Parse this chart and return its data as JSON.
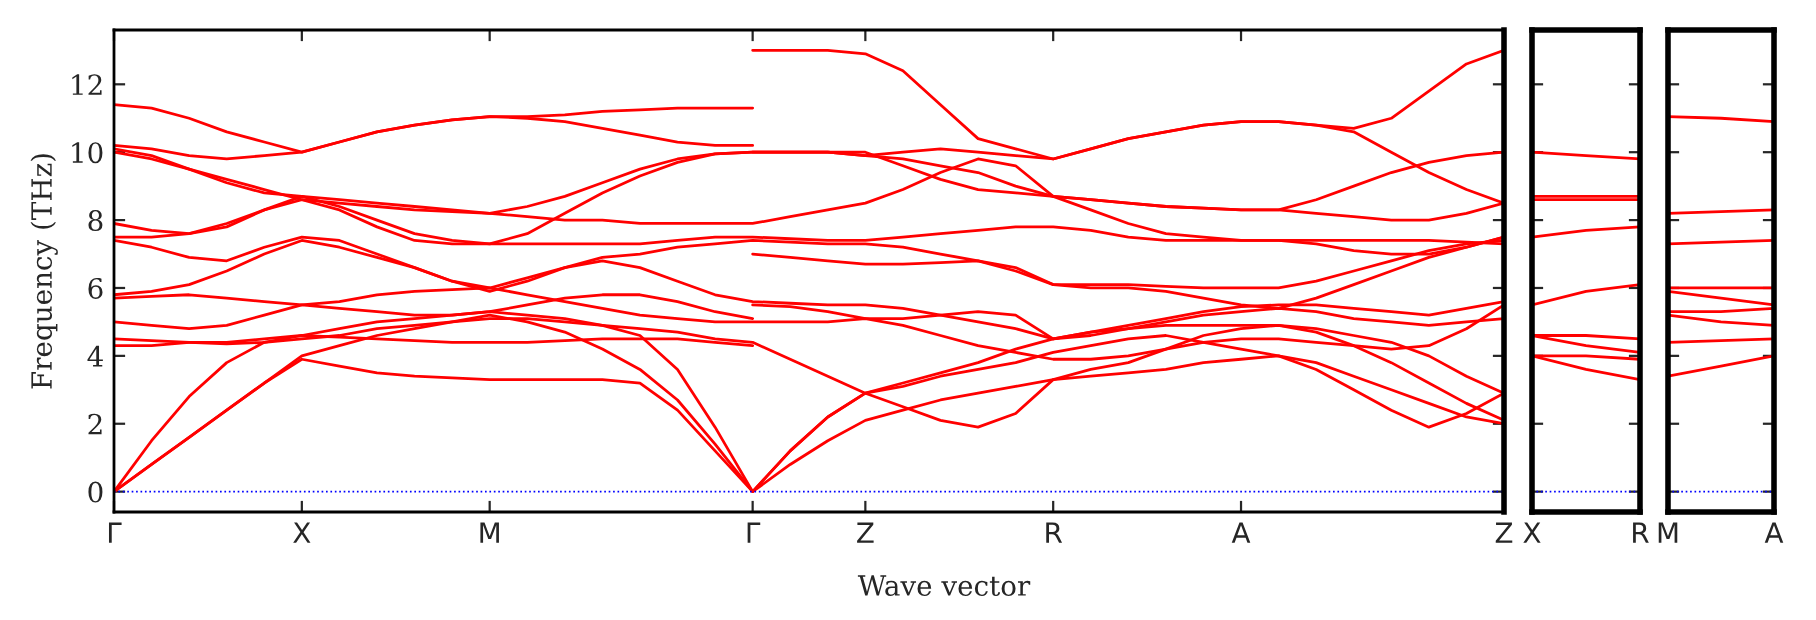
{
  "chart_data": [
    {
      "type": "line",
      "ylabel": "Frequency (THz)",
      "xlabel": "Wave vector",
      "ylim": [
        -0.6,
        13.6
      ],
      "yticks": [
        0,
        2,
        4,
        6,
        8,
        10,
        12
      ],
      "categories": [
        "Γ",
        null,
        null,
        null,
        null,
        "X",
        null,
        null,
        null,
        null,
        "M",
        null,
        null,
        null,
        null,
        null,
        null,
        "Γ",
        null,
        null,
        "Z",
        null,
        null,
        null,
        null,
        "R",
        null,
        null,
        null,
        null,
        "A",
        null,
        null,
        null,
        null,
        null,
        null,
        "Z"
      ],
      "marker": "none",
      "line_style": "solid",
      "ref_lines": [
        {
          "axis": "y",
          "value": 0,
          "color": "#0000ff",
          "line_style": "dotted"
        }
      ],
      "series": [
        {
          "color": "#ff0000",
          "values": [
            0,
            0.8,
            1.6,
            2.4,
            3.2,
            3.9,
            3.7,
            3.5,
            3.4,
            3.35,
            3.3,
            3.3,
            3.3,
            3.3,
            3.2,
            2.4,
            1.2,
            0,
            0.8,
            1.5,
            2.1,
            2.4,
            2.7,
            2.9,
            3.1,
            3.3,
            3.4,
            3.5,
            3.6,
            3.8,
            3.9,
            4.0,
            3.8,
            3.4,
            3.0,
            2.6,
            2.2,
            2.0
          ]
        },
        {
          "color": "#ff0000",
          "values": [
            0,
            0.8,
            1.6,
            2.4,
            3.2,
            4.0,
            4.3,
            4.6,
            4.8,
            5.0,
            5.2,
            5.0,
            4.7,
            4.2,
            3.6,
            2.7,
            1.4,
            0,
            1.2,
            2.2,
            2.9,
            2.5,
            2.1,
            1.9,
            2.3,
            3.3,
            3.6,
            3.8,
            4.2,
            4.6,
            4.8,
            4.9,
            4.7,
            4.3,
            3.8,
            3.2,
            2.6,
            2.1
          ]
        },
        {
          "color": "#ff0000",
          "values": [
            0,
            1.5,
            2.8,
            3.8,
            4.4,
            4.6,
            4.8,
            5.0,
            5.1,
            5.2,
            5.3,
            5.2,
            5.1,
            4.9,
            4.6,
            3.6,
            1.9,
            0,
            1.2,
            2.2,
            2.9,
            3.1,
            3.4,
            3.6,
            3.8,
            4.1,
            4.3,
            4.5,
            4.6,
            4.4,
            4.2,
            4.0,
            3.6,
            3.0,
            2.4,
            1.9,
            2.3,
            2.9
          ]
        },
        {
          "color": "#ff0000",
          "values": [
            4.5,
            4.45,
            4.4,
            4.35,
            4.4,
            4.5,
            4.6,
            4.8,
            4.9,
            5.0,
            5.1,
            5.1,
            5.0,
            4.9,
            4.8,
            4.7,
            4.5,
            4.4,
            3.9,
            3.4,
            2.9,
            3.2,
            3.5,
            3.8,
            4.2,
            4.5,
            4.7,
            4.8,
            4.9,
            4.9,
            4.9,
            4.9,
            4.8,
            4.6,
            4.4,
            4.0,
            3.4,
            2.9
          ]
        },
        {
          "color": "#ff0000",
          "values": [
            5.0,
            4.9,
            4.8,
            4.9,
            5.2,
            5.5,
            5.6,
            5.8,
            5.9,
            5.95,
            6.0,
            5.8,
            5.6,
            5.4,
            5.2,
            5.1,
            5.0,
            5.0,
            5.0,
            5.0,
            5.1,
            4.9,
            4.6,
            4.3,
            4.1,
            3.9,
            3.9,
            4.0,
            4.2,
            4.4,
            4.5,
            4.5,
            4.4,
            4.3,
            4.2,
            4.3,
            4.8,
            5.5
          ]
        },
        {
          "color": "#ff0000",
          "values": [
            5.8,
            5.9,
            6.1,
            6.5,
            7.0,
            7.4,
            7.2,
            6.9,
            6.6,
            6.2,
            6.0,
            6.3,
            6.6,
            6.8,
            6.6,
            6.2,
            5.8,
            5.6,
            5.55,
            5.5,
            5.5,
            5.4,
            5.2,
            5.0,
            4.8,
            4.5,
            4.7,
            4.9,
            5.1,
            5.3,
            5.45,
            5.5,
            5.5,
            5.4,
            5.3,
            5.2,
            5.4,
            5.6
          ]
        },
        {
          "color": "#ff0000",
          "values": [
            7.4,
            7.2,
            6.9,
            6.8,
            7.2,
            7.5,
            7.4,
            7.0,
            6.6,
            6.2,
            5.9,
            6.2,
            6.6,
            6.9,
            7.0,
            7.2,
            7.3,
            7.4,
            7.35,
            7.3,
            7.3,
            7.2,
            7.0,
            6.8,
            6.6,
            6.1,
            6.0,
            6.0,
            5.9,
            5.7,
            5.5,
            5.4,
            5.7,
            6.1,
            6.5,
            6.9,
            7.2,
            7.5
          ]
        },
        {
          "color": "#ff0000",
          "values": [
            7.5,
            7.5,
            7.6,
            7.8,
            8.3,
            8.6,
            8.3,
            7.8,
            7.4,
            7.3,
            7.3,
            7.3,
            7.3,
            7.3,
            7.3,
            7.4,
            7.5,
            7.5,
            7.45,
            7.4,
            7.4,
            7.5,
            7.6,
            7.7,
            7.8,
            7.8,
            7.7,
            7.5,
            7.4,
            7.4,
            7.4,
            7.4,
            7.4,
            7.4,
            7.4,
            7.4,
            7.35,
            7.3
          ]
        },
        {
          "color": "#ff0000",
          "values": [
            7.9,
            7.7,
            7.6,
            7.9,
            8.3,
            8.7,
            8.6,
            8.5,
            8.4,
            8.3,
            8.2,
            8.1,
            8.0,
            8.0,
            7.9,
            7.9,
            7.9,
            7.9,
            8.1,
            8.3,
            8.5,
            8.9,
            9.4,
            9.8,
            9.6,
            8.7,
            8.6,
            8.5,
            8.4,
            8.35,
            8.3,
            8.3,
            8.2,
            8.1,
            8.0,
            8.0,
            8.2,
            8.5
          ]
        },
        {
          "color": "#ff0000",
          "values": [
            10.0,
            9.8,
            9.5,
            9.2,
            8.9,
            8.6,
            8.5,
            8.4,
            8.3,
            8.25,
            8.2,
            8.4,
            8.7,
            9.1,
            9.5,
            9.8,
            9.95,
            10.0,
            10.0,
            10.0,
            10.0,
            9.6,
            9.2,
            8.9,
            8.8,
            8.7,
            8.6,
            8.5,
            8.4,
            8.35,
            8.3,
            8.3,
            8.6,
            9.0,
            9.4,
            9.7,
            9.9,
            10.0
          ]
        },
        {
          "color": "#ff0000",
          "values": [
            10.1,
            9.9,
            9.5,
            9.1,
            8.8,
            8.7,
            8.4,
            8.0,
            7.6,
            7.4,
            7.3,
            7.6,
            8.2,
            8.8,
            9.3,
            9.7,
            9.95,
            10.0,
            10.0,
            10.0,
            9.9,
            9.8,
            9.6,
            9.4,
            9.0,
            8.7,
            8.3,
            7.9,
            7.6,
            7.5,
            7.4,
            7.4,
            7.3,
            7.1,
            7.0,
            7.0,
            7.2,
            7.5
          ]
        },
        {
          "color": "#ff0000",
          "values": [
            4.3,
            4.3,
            4.4,
            4.4,
            4.5,
            4.6,
            4.55,
            4.5,
            4.45,
            4.4,
            4.4,
            4.4,
            4.45,
            4.5,
            4.5,
            4.5,
            4.4,
            4.3,
            null,
            null,
            null,
            null,
            null,
            null,
            null,
            null,
            null,
            null,
            null,
            null,
            null,
            null,
            null,
            null,
            null,
            null,
            null,
            null
          ]
        },
        {
          "color": "#ff0000",
          "values": [
            5.7,
            5.75,
            5.8,
            5.7,
            5.6,
            5.5,
            5.4,
            5.3,
            5.2,
            5.2,
            5.3,
            5.5,
            5.7,
            5.8,
            5.8,
            5.6,
            5.3,
            5.1,
            null,
            null,
            null,
            null,
            null,
            null,
            null,
            null,
            null,
            null,
            null,
            null,
            null,
            null,
            null,
            null,
            null,
            null,
            null,
            null
          ]
        },
        {
          "color": "#ff0000",
          "values": [
            10.2,
            10.1,
            9.9,
            9.8,
            9.9,
            10.0,
            10.3,
            10.6,
            10.8,
            10.95,
            11.05,
            11.0,
            10.9,
            10.7,
            10.5,
            10.3,
            10.2,
            10.2,
            null,
            null,
            null,
            null,
            null,
            null,
            null,
            null,
            null,
            null,
            null,
            null,
            null,
            null,
            null,
            null,
            null,
            null,
            null,
            null
          ]
        },
        {
          "color": "#ff0000",
          "values": [
            11.4,
            11.3,
            11.0,
            10.6,
            10.3,
            10.0,
            10.3,
            10.6,
            10.8,
            10.95,
            11.05,
            11.05,
            11.1,
            11.2,
            11.25,
            11.3,
            11.3,
            11.3,
            null,
            null,
            null,
            null,
            null,
            null,
            null,
            null,
            null,
            null,
            null,
            null,
            null,
            null,
            null,
            null,
            null,
            null,
            null,
            null
          ]
        },
        {
          "color": "#ff0000",
          "values": [
            null,
            null,
            null,
            null,
            null,
            null,
            null,
            null,
            null,
            null,
            null,
            null,
            null,
            null,
            null,
            null,
            null,
            5.5,
            5.45,
            5.3,
            5.1,
            5.1,
            5.2,
            5.3,
            5.2,
            4.5,
            4.6,
            4.8,
            5.0,
            5.2,
            5.3,
            5.4,
            5.3,
            5.1,
            5.0,
            4.9,
            5.0,
            5.1
          ]
        },
        {
          "color": "#ff0000",
          "values": [
            null,
            null,
            null,
            null,
            null,
            null,
            null,
            null,
            null,
            null,
            null,
            null,
            null,
            null,
            null,
            null,
            null,
            7.0,
            6.9,
            6.8,
            6.7,
            6.7,
            6.75,
            6.8,
            6.5,
            6.1,
            6.1,
            6.1,
            6.05,
            6.0,
            6.0,
            6.0,
            6.2,
            6.5,
            6.8,
            7.1,
            7.3,
            7.4
          ]
        },
        {
          "color": "#ff0000",
          "values": [
            null,
            null,
            null,
            null,
            null,
            null,
            null,
            null,
            null,
            null,
            null,
            null,
            null,
            null,
            null,
            null,
            null,
            10.0,
            10.0,
            10.0,
            9.9,
            10.0,
            10.1,
            10.0,
            9.9,
            9.8,
            10.1,
            10.4,
            10.6,
            10.8,
            10.9,
            10.9,
            10.8,
            10.6,
            10.0,
            9.4,
            8.9,
            8.5
          ]
        },
        {
          "color": "#ff0000",
          "values": [
            null,
            null,
            null,
            null,
            null,
            null,
            null,
            null,
            null,
            null,
            null,
            null,
            null,
            null,
            null,
            null,
            null,
            13.0,
            13.0,
            13.0,
            12.9,
            12.4,
            11.4,
            10.4,
            10.1,
            9.8,
            10.1,
            10.4,
            10.6,
            10.8,
            10.9,
            10.9,
            10.8,
            10.7,
            11.0,
            11.8,
            12.6,
            13.0
          ]
        }
      ]
    },
    {
      "type": "line",
      "ylim": [
        -0.6,
        13.6
      ],
      "yticks": [
        0,
        2,
        4,
        6,
        8,
        10,
        12
      ],
      "tick_labels": "x",
      "categories": [
        "X",
        null,
        "R"
      ],
      "marker": "none",
      "line_style": "solid",
      "ref_lines": [
        {
          "axis": "y",
          "value": 0,
          "color": "#0000ff",
          "line_style": "dotted"
        }
      ],
      "series": [
        {
          "color": "#ff0000",
          "values": [
            10.0,
            9.9,
            9.8
          ]
        },
        {
          "color": "#ff0000",
          "values": [
            8.7,
            8.7,
            8.7
          ]
        },
        {
          "color": "#ff0000",
          "values": [
            8.6,
            8.6,
            8.6
          ]
        },
        {
          "color": "#ff0000",
          "values": [
            7.5,
            7.7,
            7.8
          ]
        },
        {
          "color": "#ff0000",
          "values": [
            5.5,
            5.9,
            6.1
          ]
        },
        {
          "color": "#ff0000",
          "values": [
            4.6,
            4.6,
            4.5
          ]
        },
        {
          "color": "#ff0000",
          "values": [
            4.6,
            4.3,
            4.1
          ]
        },
        {
          "color": "#ff0000",
          "values": [
            4.0,
            4.0,
            3.9
          ]
        },
        {
          "color": "#ff0000",
          "values": [
            4.0,
            3.6,
            3.3
          ]
        }
      ]
    },
    {
      "type": "line",
      "ylim": [
        -0.6,
        13.6
      ],
      "yticks": [
        0,
        2,
        4,
        6,
        8,
        10,
        12
      ],
      "tick_labels": "x",
      "categories": [
        "M",
        null,
        "A"
      ],
      "marker": "none",
      "line_style": "solid",
      "ref_lines": [
        {
          "axis": "y",
          "value": 0,
          "color": "#0000ff",
          "line_style": "dotted"
        }
      ],
      "series": [
        {
          "color": "#ff0000",
          "values": [
            11.05,
            11.0,
            10.9
          ]
        },
        {
          "color": "#ff0000",
          "values": [
            8.2,
            8.25,
            8.3
          ]
        },
        {
          "color": "#ff0000",
          "values": [
            7.3,
            7.35,
            7.4
          ]
        },
        {
          "color": "#ff0000",
          "values": [
            6.0,
            6.0,
            6.0
          ]
        },
        {
          "color": "#ff0000",
          "values": [
            5.9,
            5.7,
            5.5
          ]
        },
        {
          "color": "#ff0000",
          "values": [
            5.3,
            5.3,
            5.4
          ]
        },
        {
          "color": "#ff0000",
          "values": [
            5.2,
            5.0,
            4.9
          ]
        },
        {
          "color": "#ff0000",
          "values": [
            4.4,
            4.45,
            4.5
          ]
        },
        {
          "color": "#ff0000",
          "values": [
            3.4,
            3.7,
            4.0
          ]
        }
      ]
    }
  ]
}
